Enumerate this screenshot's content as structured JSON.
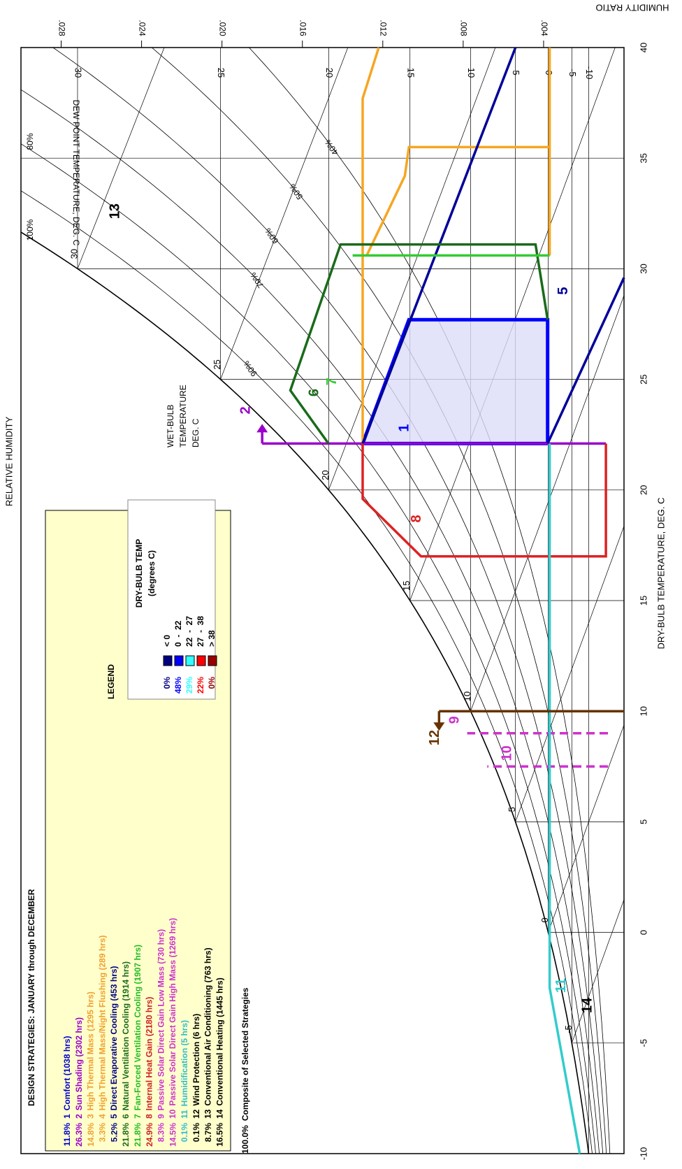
{
  "chart_data": {
    "type": "psychrometric",
    "title": "DESIGN STRATEGIES: JANUARY through DECEMBER",
    "xlabel": "DRY-BULB TEMPERATURE, DEG. C",
    "ylabel": "HUMIDITY RATIO",
    "rh_label": "RELATIVE HUMIDITY",
    "wb_label": [
      "WET-BULB",
      "TEMPERATURE",
      "DEG. C"
    ],
    "dp_label": "DEW POINT TEMPERATURE, DEG. C",
    "xlim": [
      -10,
      40
    ],
    "xticks": [
      -10,
      -5,
      0,
      5,
      10,
      15,
      20,
      25,
      30,
      35,
      40
    ],
    "ylim": [
      0,
      0.03
    ],
    "yticks": [
      {
        "value": 0.004,
        "label": ".004"
      },
      {
        "value": 0.008,
        "label": ".008"
      },
      {
        "value": 0.012,
        "label": ".012"
      },
      {
        "value": 0.016,
        "label": ".016"
      },
      {
        "value": 0.02,
        "label": ".020"
      },
      {
        "value": 0.024,
        "label": ".024"
      },
      {
        "value": 0.028,
        "label": ".028"
      }
    ],
    "rh_lines": [
      {
        "value": 100,
        "label": "100%"
      },
      {
        "value": 90,
        "label": "90%"
      },
      {
        "value": 80,
        "label": "80%"
      },
      {
        "value": 70,
        "label": "70%"
      },
      {
        "value": 60,
        "label": "60%"
      },
      {
        "value": 50,
        "label": "50%"
      },
      {
        "value": 40,
        "label": "40%"
      }
    ],
    "wet_bulb_lines": [
      -5,
      0,
      5,
      10,
      15,
      20,
      25,
      30
    ],
    "dew_point_lines": [
      -10,
      -5,
      0,
      5,
      10,
      15,
      20,
      25,
      30
    ],
    "strategies": [
      {
        "pct": "11.8%",
        "number": "1",
        "name": "Comfort (1038 hrs)",
        "color": "#0000cc",
        "zone": {
          "color": "#0000ff",
          "fill": "#dcdcf8",
          "t": [
            22.1,
            22.1,
            27.7,
            27.7,
            22.1
          ],
          "w": [
            0.0038,
            0.013,
            0.0107,
            0.0038,
            0.0038
          ]
        }
      },
      {
        "pct": "26.3%",
        "number": "2",
        "name": "Sun Shading (2302 hrs)",
        "color": "#9900cc",
        "zone": {
          "color": "#9900cc",
          "arrow": "right",
          "t": [
            22.1,
            22.1
          ],
          "w": [
            0.0009,
            0.018
          ]
        }
      },
      {
        "pct": "14.8%",
        "number": "3",
        "name": "High Thermal Mass (1295 hrs)",
        "color": "#f0a030",
        "zone": {
          "color": "#f5a623",
          "t": [
            22.1,
            37.7,
            40,
            null,
            30.6,
            40
          ],
          "w": [
            0.013,
            0.013,
            0.0122,
            null,
            0.0037,
            0.0037
          ]
        }
      },
      {
        "pct": "3.3%",
        "number": "4",
        "name": "High Thermal Mass/Night Flushing (289 hrs)",
        "color": "#f0a030",
        "zone": {
          "color": "#f5a623",
          "t": [
            30.6,
            34.2,
            35.5,
            35.5
          ],
          "w": [
            0.0128,
            0.0109,
            0.0107,
            0.0037
          ]
        }
      },
      {
        "pct": "5.2%",
        "number": "5",
        "name": "Direct Evaporative Cooling (453 hrs)",
        "color": "#000080",
        "zone": {
          "color": "#000099",
          "t": [
            22.1,
            40,
            null,
            22.1,
            29.6
          ],
          "w": [
            0.013,
            0.0054,
            null,
            0.0038,
            0
          ]
        }
      },
      {
        "pct": "21.8%",
        "number": "6",
        "name": "Natural Ventilation Cooling (1914 hrs)",
        "color": "#1a6b1a",
        "zone": {
          "color": "#1a6b1a",
          "t": [
            22.1,
            24.5,
            31.1,
            31.1,
            27.7
          ],
          "w": [
            0.0147,
            0.0166,
            0.0141,
            0.0044,
            0.0038
          ]
        }
      },
      {
        "pct": "21.8%",
        "number": "7",
        "name": "Fan-Forced Ventilation Cooling (1907 hrs)",
        "color": "#22bb22",
        "zone": {
          "color": "#33cc33",
          "t": [
            30.6,
            30.6
          ],
          "w": [
            0.0135,
            0.0037
          ]
        }
      },
      {
        "pct": "24.9%",
        "number": "8",
        "name": "Internal Heat Gain (2180 hrs)",
        "color": "#cc2222",
        "zone": {
          "color": "#dd2222",
          "t": [
            22.1,
            19.6,
            17.0,
            17.0,
            22.1
          ],
          "w": [
            0.013,
            0.013,
            0.0101,
            0.0009,
            0.0009
          ]
        }
      },
      {
        "pct": "8.3%",
        "number": "9",
        "name": "Passive Solar Direct Gain Low Mass (730 hrs)",
        "color": "#cc33cc",
        "zone": {
          "color": "#cc33cc",
          "dash": true,
          "t": [
            9.0,
            9.0
          ],
          "w": [
            0.0008,
            0.0078
          ]
        }
      },
      {
        "pct": "14.5%",
        "number": "10",
        "name": "Passive Solar Direct Gain High Mass (1269 hrs)",
        "color": "#cc33cc",
        "zone": {
          "color": "#cc33cc",
          "dash": true,
          "t": [
            7.5,
            7.5
          ],
          "w": [
            0.0008,
            0.0068
          ]
        }
      },
      {
        "pct": "0.1%",
        "number": "11",
        "name": "Humidification (5 hrs)",
        "color": "#33bbcc",
        "zone": {
          "color": "#33cccc",
          "t": [
            22.1,
            -2.5,
            -10
          ],
          "w": [
            0.0037,
            0.0037,
            0.0022
          ]
        }
      },
      {
        "pct": "0.1%",
        "number": "12",
        "name": "Wind Protection (6 hrs)",
        "color": "#000000",
        "zone": {
          "color": "#663300",
          "arrow": "left",
          "t": [
            10,
            10
          ],
          "w": [
            0,
            0.0092
          ]
        }
      },
      {
        "pct": "8.7%",
        "number": "13",
        "name": "Conventional Air Conditioning (763 hrs)",
        "color": "#000000"
      },
      {
        "pct": "16.5%",
        "number": "14",
        "name": "Conventional Heating (1445 hrs)",
        "color": "#000000"
      }
    ],
    "composite": {
      "pct": "100.0%",
      "label": "Composite of Selected Strategies"
    },
    "legend": {
      "title": "LEGEND",
      "heading": "DRY-BULB TEMP",
      "unit": "(degrees C)",
      "entries": [
        {
          "pct": "0%",
          "label": "< 0",
          "color": "#000080"
        },
        {
          "pct": "48%",
          "label": "0  -  22",
          "color": "#0000ff"
        },
        {
          "pct": "29%",
          "label": "22  -  27",
          "color": "#33ffff"
        },
        {
          "pct": "22%",
          "label": "27  -  38",
          "color": "#ff0000"
        },
        {
          "pct": "0%",
          "label": "> 38",
          "color": "#990000"
        }
      ]
    }
  }
}
